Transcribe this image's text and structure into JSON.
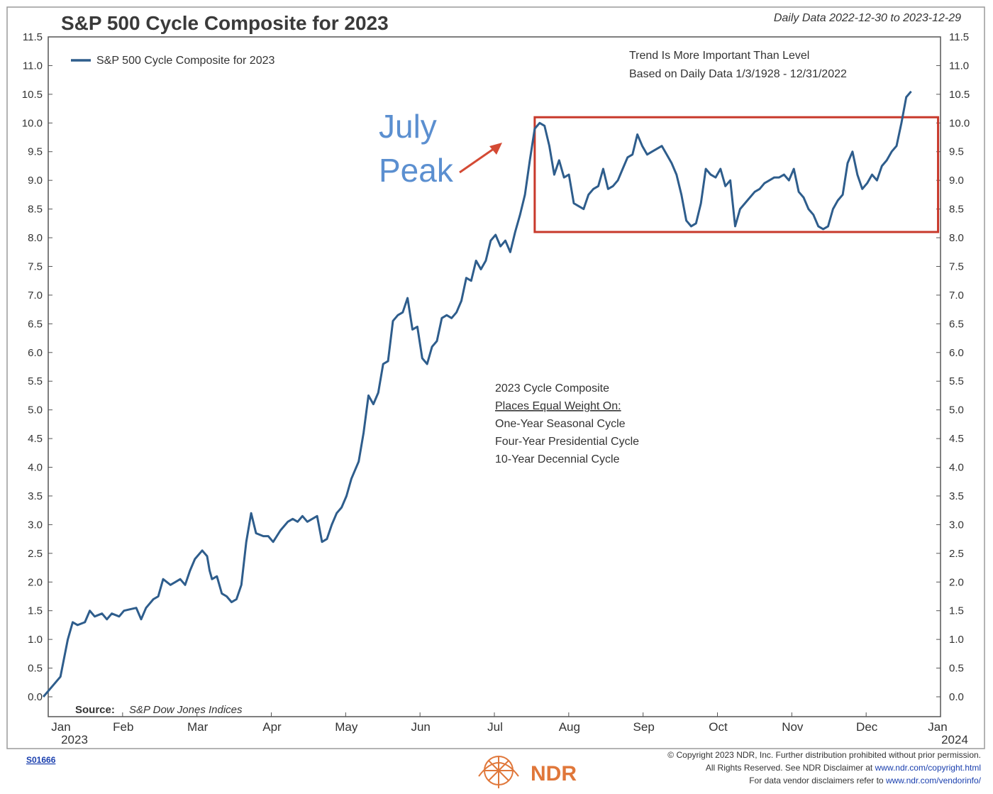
{
  "chart_data": {
    "type": "line",
    "title": "S&P 500 Cycle Composite for 2023",
    "subtitle": "Daily Data 2022-12-30 to 2023-12-29",
    "ylim": [
      0.0,
      11.5
    ],
    "y_ticks": [
      "0.0",
      "0.5",
      "1.0",
      "1.5",
      "2.0",
      "2.5",
      "3.0",
      "3.5",
      "4.0",
      "4.5",
      "5.0",
      "5.5",
      "6.0",
      "6.5",
      "7.0",
      "7.5",
      "8.0",
      "8.5",
      "9.0",
      "9.5",
      "10.0",
      "10.5",
      "11.0",
      "11.5"
    ],
    "x_ticks": [
      {
        "label": "Jan",
        "sub": "2023"
      },
      {
        "label": "Feb",
        "sub": ""
      },
      {
        "label": "Mar",
        "sub": ""
      },
      {
        "label": "Apr",
        "sub": ""
      },
      {
        "label": "May",
        "sub": ""
      },
      {
        "label": "Jun",
        "sub": ""
      },
      {
        "label": "Jul",
        "sub": ""
      },
      {
        "label": "Aug",
        "sub": ""
      },
      {
        "label": "Sep",
        "sub": ""
      },
      {
        "label": "Oct",
        "sub": ""
      },
      {
        "label": "Nov",
        "sub": ""
      },
      {
        "label": "Dec",
        "sub": ""
      },
      {
        "label": "Jan",
        "sub": "2024"
      }
    ],
    "legend": {
      "placement": "top-left",
      "label": "S&P 500 Cycle Composite for 2023",
      "color": "#2e5d8c"
    },
    "series": [
      {
        "name": "S&P 500 Cycle Composite for 2023",
        "color": "#2e5d8c",
        "points": [
          [
            "2022-12-30",
            0.0
          ],
          [
            "2023-01-03",
            0.2
          ],
          [
            "2023-01-06",
            0.35
          ],
          [
            "2023-01-09",
            1.0
          ],
          [
            "2023-01-11",
            1.3
          ],
          [
            "2023-01-13",
            1.25
          ],
          [
            "2023-01-16",
            1.3
          ],
          [
            "2023-01-18",
            1.5
          ],
          [
            "2023-01-20",
            1.4
          ],
          [
            "2023-01-23",
            1.45
          ],
          [
            "2023-01-25",
            1.35
          ],
          [
            "2023-01-27",
            1.45
          ],
          [
            "2023-01-30",
            1.4
          ],
          [
            "2023-02-01",
            1.5
          ],
          [
            "2023-02-03",
            1.52
          ],
          [
            "2023-02-06",
            1.55
          ],
          [
            "2023-02-08",
            1.35
          ],
          [
            "2023-02-10",
            1.55
          ],
          [
            "2023-02-13",
            1.7
          ],
          [
            "2023-02-15",
            1.75
          ],
          [
            "2023-02-17",
            2.05
          ],
          [
            "2023-02-20",
            1.95
          ],
          [
            "2023-02-22",
            2.0
          ],
          [
            "2023-02-24",
            2.05
          ],
          [
            "2023-02-26",
            1.95
          ],
          [
            "2023-02-28",
            2.2
          ],
          [
            "2023-03-02",
            2.4
          ],
          [
            "2023-03-05",
            2.55
          ],
          [
            "2023-03-07",
            2.45
          ],
          [
            "2023-03-08",
            2.2
          ],
          [
            "2023-03-09",
            2.05
          ],
          [
            "2023-03-11",
            2.1
          ],
          [
            "2023-03-13",
            1.8
          ],
          [
            "2023-03-15",
            1.75
          ],
          [
            "2023-03-17",
            1.65
          ],
          [
            "2023-03-19",
            1.7
          ],
          [
            "2023-03-21",
            1.95
          ],
          [
            "2023-03-23",
            2.7
          ],
          [
            "2023-03-25",
            3.2
          ],
          [
            "2023-03-27",
            2.85
          ],
          [
            "2023-03-30",
            2.8
          ],
          [
            "2023-04-01",
            2.8
          ],
          [
            "2023-04-03",
            2.7
          ],
          [
            "2023-04-06",
            2.9
          ],
          [
            "2023-04-09",
            3.05
          ],
          [
            "2023-04-11",
            3.1
          ],
          [
            "2023-04-13",
            3.05
          ],
          [
            "2023-04-15",
            3.15
          ],
          [
            "2023-04-17",
            3.05
          ],
          [
            "2023-04-19",
            3.1
          ],
          [
            "2023-04-21",
            3.15
          ],
          [
            "2023-04-23",
            2.7
          ],
          [
            "2023-04-25",
            2.75
          ],
          [
            "2023-04-27",
            3.0
          ],
          [
            "2023-04-29",
            3.2
          ],
          [
            "2023-05-01",
            3.3
          ],
          [
            "2023-05-03",
            3.5
          ],
          [
            "2023-05-05",
            3.8
          ],
          [
            "2023-05-08",
            4.1
          ],
          [
            "2023-05-10",
            4.6
          ],
          [
            "2023-05-12",
            5.25
          ],
          [
            "2023-05-14",
            5.1
          ],
          [
            "2023-05-16",
            5.3
          ],
          [
            "2023-05-18",
            5.8
          ],
          [
            "2023-05-20",
            5.85
          ],
          [
            "2023-05-22",
            6.55
          ],
          [
            "2023-05-24",
            6.65
          ],
          [
            "2023-05-26",
            6.7
          ],
          [
            "2023-05-28",
            6.95
          ],
          [
            "2023-05-30",
            6.4
          ],
          [
            "2023-06-01",
            6.45
          ],
          [
            "2023-06-03",
            5.9
          ],
          [
            "2023-06-05",
            5.8
          ],
          [
            "2023-06-07",
            6.1
          ],
          [
            "2023-06-09",
            6.2
          ],
          [
            "2023-06-11",
            6.6
          ],
          [
            "2023-06-13",
            6.65
          ],
          [
            "2023-06-15",
            6.6
          ],
          [
            "2023-06-17",
            6.7
          ],
          [
            "2023-06-19",
            6.9
          ],
          [
            "2023-06-21",
            7.3
          ],
          [
            "2023-06-23",
            7.25
          ],
          [
            "2023-06-25",
            7.6
          ],
          [
            "2023-06-27",
            7.45
          ],
          [
            "2023-06-29",
            7.6
          ],
          [
            "2023-07-01",
            7.95
          ],
          [
            "2023-07-03",
            8.05
          ],
          [
            "2023-07-05",
            7.85
          ],
          [
            "2023-07-07",
            7.95
          ],
          [
            "2023-07-09",
            7.75
          ],
          [
            "2023-07-11",
            8.1
          ],
          [
            "2023-07-13",
            8.4
          ],
          [
            "2023-07-15",
            8.75
          ],
          [
            "2023-07-17",
            9.35
          ],
          [
            "2023-07-19",
            9.9
          ],
          [
            "2023-07-21",
            10.0
          ],
          [
            "2023-07-23",
            9.95
          ],
          [
            "2023-07-25",
            9.6
          ],
          [
            "2023-07-27",
            9.1
          ],
          [
            "2023-07-29",
            9.35
          ],
          [
            "2023-07-31",
            9.05
          ],
          [
            "2023-08-02",
            9.1
          ],
          [
            "2023-08-04",
            8.6
          ],
          [
            "2023-08-06",
            8.55
          ],
          [
            "2023-08-08",
            8.5
          ],
          [
            "2023-08-10",
            8.75
          ],
          [
            "2023-08-12",
            8.85
          ],
          [
            "2023-08-14",
            8.9
          ],
          [
            "2023-08-16",
            9.2
          ],
          [
            "2023-08-18",
            8.85
          ],
          [
            "2023-08-20",
            8.9
          ],
          [
            "2023-08-22",
            9.0
          ],
          [
            "2023-08-24",
            9.2
          ],
          [
            "2023-08-26",
            9.4
          ],
          [
            "2023-08-28",
            9.45
          ],
          [
            "2023-08-30",
            9.8
          ],
          [
            "2023-09-01",
            9.6
          ],
          [
            "2023-09-03",
            9.45
          ],
          [
            "2023-09-05",
            9.5
          ],
          [
            "2023-09-07",
            9.55
          ],
          [
            "2023-09-09",
            9.6
          ],
          [
            "2023-09-11",
            9.45
          ],
          [
            "2023-09-13",
            9.3
          ],
          [
            "2023-09-15",
            9.1
          ],
          [
            "2023-09-17",
            8.75
          ],
          [
            "2023-09-19",
            8.3
          ],
          [
            "2023-09-21",
            8.2
          ],
          [
            "2023-09-23",
            8.25
          ],
          [
            "2023-09-25",
            8.6
          ],
          [
            "2023-09-27",
            9.2
          ],
          [
            "2023-09-29",
            9.1
          ],
          [
            "2023-10-01",
            9.05
          ],
          [
            "2023-10-03",
            9.2
          ],
          [
            "2023-10-05",
            8.9
          ],
          [
            "2023-10-07",
            9.0
          ],
          [
            "2023-10-09",
            8.2
          ],
          [
            "2023-10-11",
            8.5
          ],
          [
            "2023-10-13",
            8.6
          ],
          [
            "2023-10-15",
            8.7
          ],
          [
            "2023-10-17",
            8.8
          ],
          [
            "2023-10-19",
            8.85
          ],
          [
            "2023-10-21",
            8.95
          ],
          [
            "2023-10-23",
            9.0
          ],
          [
            "2023-10-25",
            9.05
          ],
          [
            "2023-10-27",
            9.05
          ],
          [
            "2023-10-29",
            9.1
          ],
          [
            "2023-10-31",
            9.0
          ],
          [
            "2023-11-02",
            9.2
          ],
          [
            "2023-11-04",
            8.8
          ],
          [
            "2023-11-06",
            8.7
          ],
          [
            "2023-11-08",
            8.5
          ],
          [
            "2023-11-10",
            8.4
          ],
          [
            "2023-11-12",
            8.2
          ],
          [
            "2023-11-14",
            8.15
          ],
          [
            "2023-11-16",
            8.2
          ],
          [
            "2023-11-18",
            8.5
          ],
          [
            "2023-11-20",
            8.65
          ],
          [
            "2023-11-22",
            8.75
          ],
          [
            "2023-11-24",
            9.3
          ],
          [
            "2023-11-26",
            9.5
          ],
          [
            "2023-11-28",
            9.1
          ],
          [
            "2023-11-30",
            8.85
          ],
          [
            "2023-12-02",
            8.95
          ],
          [
            "2023-12-04",
            9.1
          ],
          [
            "2023-12-06",
            9.0
          ],
          [
            "2023-12-08",
            9.25
          ],
          [
            "2023-12-10",
            9.35
          ],
          [
            "2023-12-12",
            9.5
          ],
          [
            "2023-12-14",
            9.6
          ],
          [
            "2023-12-16",
            10.0
          ],
          [
            "2023-12-18",
            10.45
          ],
          [
            "2023-12-20",
            10.55
          ]
        ]
      }
    ]
  },
  "top_right_note": [
    "Trend Is More Important Than Level",
    "Based on Daily Data 1/3/1928 - 12/31/2022"
  ],
  "annotation": {
    "line1": "July",
    "line2": "Peak",
    "color": "#5b8fd0",
    "arrow_color": "#d44a34"
  },
  "highlight_box": {
    "color": "#c8392b",
    "from": "2023-07-19",
    "to": "2023-12-31",
    "ymin": 8.1,
    "ymax": 10.1
  },
  "center_note": {
    "heading": "2023 Cycle Composite",
    "subheading": "Places Equal Weight On:",
    "items": [
      "One-Year Seasonal Cycle",
      "Four-Year Presidential Cycle",
      "10-Year Decennial Cycle"
    ]
  },
  "source": {
    "label": "Source:",
    "value": "S&P Dow Jones Indices"
  },
  "footer": {
    "code": "S01666",
    "copyright_line1": "© Copyright 2023 NDR, Inc. Further distribution prohibited without prior permission.",
    "copyright_line2_prefix": "All Rights Reserved. See NDR Disclaimer at ",
    "copyright_line2_link": "www.ndr.com/copyright.html",
    "copyright_line3_prefix": "For data vendor disclaimers refer to ",
    "copyright_line3_link": "www.ndr.com/vendorinfo/",
    "brand": "NDR",
    "brand_color": "#e0773a"
  }
}
